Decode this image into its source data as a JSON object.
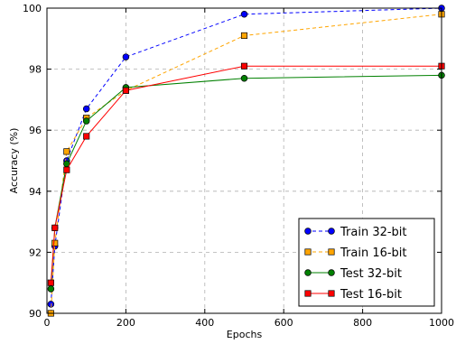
{
  "chart_data": {
    "type": "line",
    "xlabel": "Epochs",
    "ylabel": "Accuracy (%)",
    "xlim": [
      0,
      1000
    ],
    "ylim": [
      90,
      100
    ],
    "xticks": [
      "0",
      "200",
      "400",
      "600",
      "800",
      "1000"
    ],
    "yticks": [
      "90",
      "92",
      "94",
      "96",
      "98",
      "100"
    ],
    "grid": true,
    "legend_position": "bottom-right",
    "series": [
      {
        "name": "Train 32-bit",
        "color": "#0000ff",
        "linestyle": "dashed",
        "marker": "circle",
        "x": [
          10,
          20,
          50,
          100,
          200,
          500,
          1000
        ],
        "y": [
          90.3,
          92.2,
          95.0,
          96.7,
          98.4,
          99.8,
          100.0
        ]
      },
      {
        "name": "Train 16-bit",
        "color": "#ffa500",
        "linestyle": "dashed",
        "marker": "square",
        "x": [
          10,
          20,
          50,
          100,
          200,
          500,
          1000
        ],
        "y": [
          90.0,
          92.3,
          95.3,
          96.4,
          97.3,
          99.1,
          99.8
        ]
      },
      {
        "name": "Test 32-bit",
        "color": "#008000",
        "linestyle": "solid",
        "marker": "circle",
        "x": [
          10,
          20,
          50,
          100,
          200,
          500,
          1000
        ],
        "y": [
          90.8,
          92.8,
          94.9,
          96.3,
          97.4,
          97.7,
          97.8
        ]
      },
      {
        "name": "Test 16-bit",
        "color": "#ff0000",
        "linestyle": "solid",
        "marker": "square",
        "x": [
          10,
          20,
          50,
          100,
          200,
          500,
          1000
        ],
        "y": [
          91.0,
          92.8,
          94.7,
          95.8,
          97.3,
          98.1,
          98.1
        ]
      }
    ]
  }
}
